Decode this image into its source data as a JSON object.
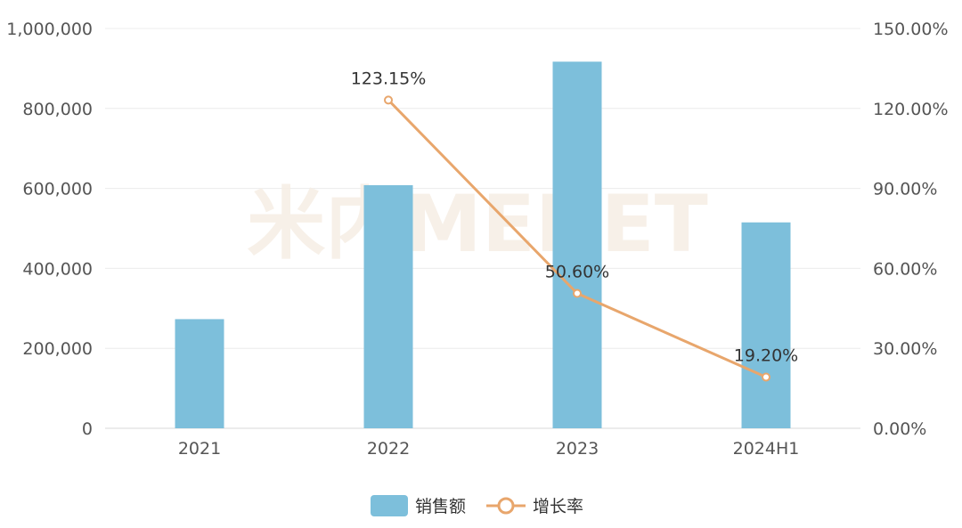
{
  "chart_data": {
    "type": "bar",
    "categories": [
      "2021",
      "2022",
      "2023",
      "2024H1"
    ],
    "series": [
      {
        "name": "销售额",
        "kind": "bar",
        "axis": "left",
        "values": [
          273000,
          608000,
          917000,
          515000
        ],
        "color": "#7dbfdb"
      },
      {
        "name": "增长率",
        "kind": "line",
        "axis": "right",
        "values": [
          null,
          123.15,
          50.6,
          19.2
        ],
        "data_labels": [
          "",
          "123.15%",
          "50.60%",
          "19.20%"
        ],
        "color": "#e8a66c"
      }
    ],
    "left_axis": {
      "ylim": [
        0,
        1000000
      ],
      "ticks": [
        "0",
        "200,000",
        "400,000",
        "600,000",
        "800,000",
        "1,000,000"
      ]
    },
    "right_axis": {
      "ylim": [
        0,
        150
      ],
      "ticks": [
        "0.00%",
        "30.00%",
        "60.00%",
        "90.00%",
        "120.00%",
        "150.00%"
      ]
    },
    "grid": true,
    "legend_position": "bottom-center",
    "watermark": "米内MENET"
  }
}
